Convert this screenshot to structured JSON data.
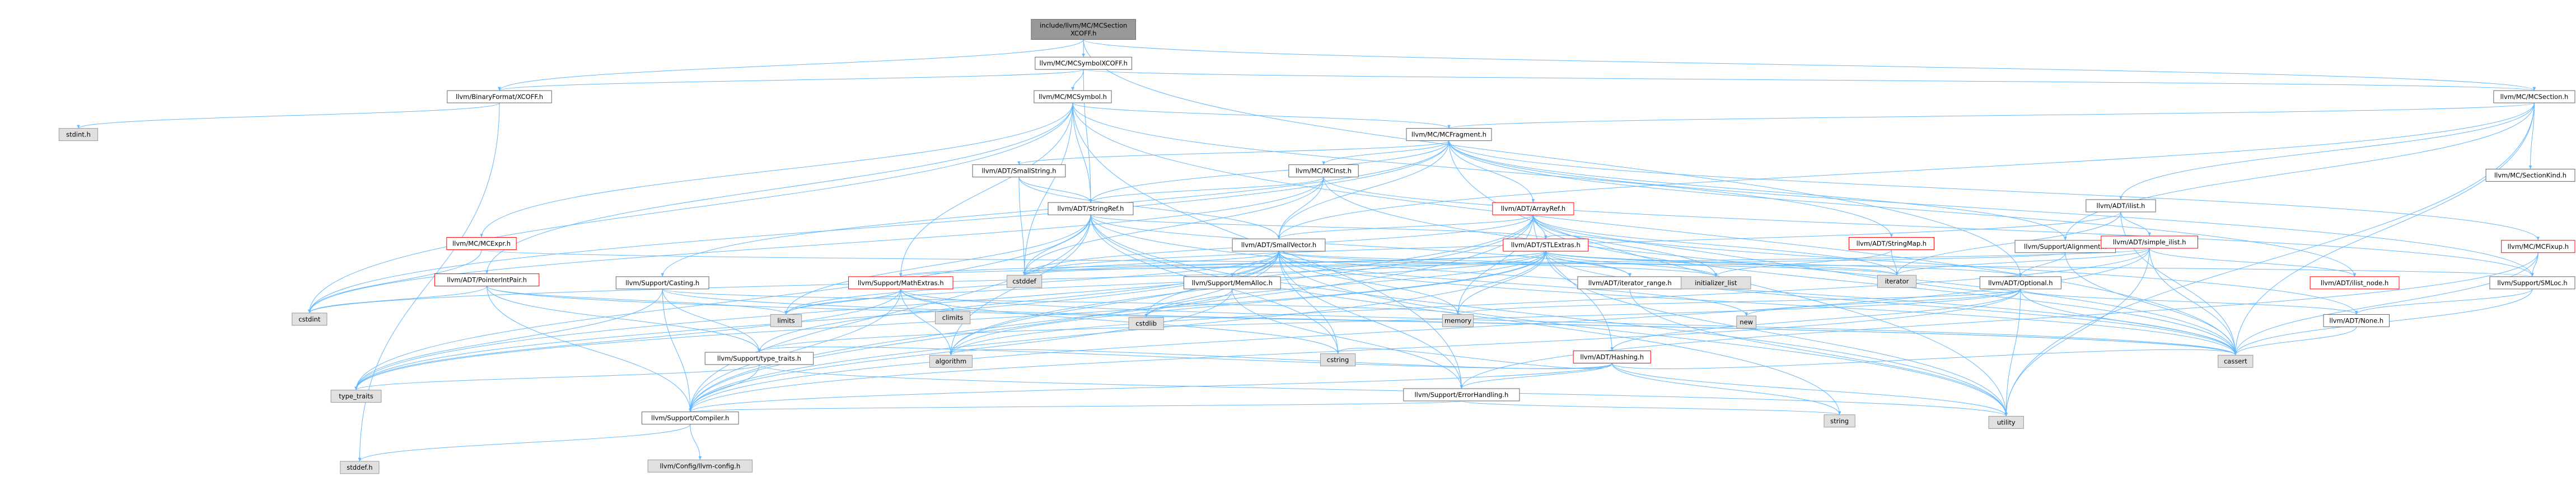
{
  "graph": {
    "nodes": [
      {
        "id": "root",
        "label": "include/llvm/MC/MCSection\nXCOFF.h",
        "style": "root"
      },
      {
        "id": "sym_xcoff",
        "label": "llvm/MC/MCSymbolXCOFF.h",
        "style": "normal"
      },
      {
        "id": "bf_xcoff",
        "label": "llvm/BinaryFormat/XCOFF.h",
        "style": "normal"
      },
      {
        "id": "mcsymbol",
        "label": "llvm/MC/MCSymbol.h",
        "style": "normal"
      },
      {
        "id": "mcsection",
        "label": "llvm/MC/MCSection.h",
        "style": "normal"
      },
      {
        "id": "stdint",
        "label": "stdint.h",
        "style": "gray"
      },
      {
        "id": "mcfragment",
        "label": "llvm/MC/MCFragment.h",
        "style": "normal"
      },
      {
        "id": "sectionkind",
        "label": "llvm/MC/SectionKind.h",
        "style": "normal"
      },
      {
        "id": "smallstring",
        "label": "llvm/ADT/SmallString.h",
        "style": "normal"
      },
      {
        "id": "mcinst",
        "label": "llvm/MC/MCInst.h",
        "style": "normal"
      },
      {
        "id": "arrayref",
        "label": "llvm/ADT/ArrayRef.h",
        "style": "red"
      },
      {
        "id": "ilist",
        "label": "llvm/ADT/ilist.h",
        "style": "normal"
      },
      {
        "id": "mcfixup",
        "label": "llvm/MC/MCFixup.h",
        "style": "red"
      },
      {
        "id": "stringref",
        "label": "llvm/ADT/StringRef.h",
        "style": "normal"
      },
      {
        "id": "mcexpr",
        "label": "llvm/MC/MCExpr.h",
        "style": "red"
      },
      {
        "id": "smallvector",
        "label": "llvm/ADT/SmallVector.h",
        "style": "normal"
      },
      {
        "id": "stlextras",
        "label": "llvm/ADT/STLExtras.h",
        "style": "red"
      },
      {
        "id": "stringmap",
        "label": "llvm/ADT/StringMap.h",
        "style": "red"
      },
      {
        "id": "alignment",
        "label": "llvm/Support/Alignment.h",
        "style": "normal"
      },
      {
        "id": "simple_ilist",
        "label": "llvm/ADT/simple_ilist.h",
        "style": "red"
      },
      {
        "id": "pointerintpair",
        "label": "llvm/ADT/PointerIntPair.h",
        "style": "red"
      },
      {
        "id": "casting",
        "label": "llvm/Support/Casting.h",
        "style": "normal"
      },
      {
        "id": "mathextras",
        "label": "llvm/Support/MathExtras.h",
        "style": "red"
      },
      {
        "id": "memalloc",
        "label": "llvm/Support/MemAlloc.h",
        "style": "normal"
      },
      {
        "id": "iterator_range",
        "label": "llvm/ADT/iterator_range.h",
        "style": "normal"
      },
      {
        "id": "optional",
        "label": "llvm/ADT/Optional.h",
        "style": "normal"
      },
      {
        "id": "ilist_node",
        "label": "llvm/ADT/ilist_node.h",
        "style": "red"
      },
      {
        "id": "smloc",
        "label": "llvm/Support/SMLoc.h",
        "style": "normal"
      },
      {
        "id": "cstddef",
        "label": "cstddef",
        "style": "gray"
      },
      {
        "id": "initializer_list",
        "label": "initializer_list",
        "style": "gray"
      },
      {
        "id": "iterator",
        "label": "iterator",
        "style": "gray"
      },
      {
        "id": "cstdint",
        "label": "cstdint",
        "style": "gray"
      },
      {
        "id": "climits",
        "label": "climits",
        "style": "gray"
      },
      {
        "id": "limits",
        "label": "limits",
        "style": "gray"
      },
      {
        "id": "cstdlib",
        "label": "cstdlib",
        "style": "gray"
      },
      {
        "id": "memory",
        "label": "memory",
        "style": "gray"
      },
      {
        "id": "new",
        "label": "new",
        "style": "gray"
      },
      {
        "id": "hashing",
        "label": "llvm/ADT/Hashing.h",
        "style": "red"
      },
      {
        "id": "none",
        "label": "llvm/ADT/None.h",
        "style": "normal"
      },
      {
        "id": "algorithm",
        "label": "algorithm",
        "style": "gray"
      },
      {
        "id": "cstring",
        "label": "cstring",
        "style": "gray"
      },
      {
        "id": "type_traits_h",
        "label": "llvm/Support/type_traits.h",
        "style": "normal"
      },
      {
        "id": "errorhandling",
        "label": "llvm/Support/ErrorHandling.h",
        "style": "normal"
      },
      {
        "id": "cassert",
        "label": "cassert",
        "style": "gray"
      },
      {
        "id": "type_traits",
        "label": "type_traits",
        "style": "gray"
      },
      {
        "id": "compiler",
        "label": "llvm/Support/Compiler.h",
        "style": "normal"
      },
      {
        "id": "string",
        "label": "string",
        "style": "gray"
      },
      {
        "id": "utility",
        "label": "utility",
        "style": "gray"
      },
      {
        "id": "stddef",
        "label": "stddef.h",
        "style": "gray"
      },
      {
        "id": "llvm_config",
        "label": "llvm/Config/llvm-config.h",
        "style": "gray"
      }
    ],
    "edges": [
      [
        "root",
        "sym_xcoff"
      ],
      [
        "root",
        "bf_xcoff"
      ],
      [
        "root",
        "mcsection"
      ],
      [
        "root",
        "optional"
      ],
      [
        "sym_xcoff",
        "bf_xcoff"
      ],
      [
        "sym_xcoff",
        "mcsymbol"
      ],
      [
        "sym_xcoff",
        "stringref"
      ],
      [
        "sym_xcoff",
        "mcsection"
      ],
      [
        "bf_xcoff",
        "stdint"
      ],
      [
        "bf_xcoff",
        "stddef"
      ],
      [
        "mcsymbol",
        "mcfragment"
      ],
      [
        "mcsymbol",
        "stringref"
      ],
      [
        "mcsymbol",
        "mcexpr"
      ],
      [
        "mcsymbol",
        "stringmap"
      ],
      [
        "mcsymbol",
        "pointerintpair"
      ],
      [
        "mcsymbol",
        "mathextras"
      ],
      [
        "mcsymbol",
        "errorhandling"
      ],
      [
        "mcsymbol",
        "cassert"
      ],
      [
        "mcsymbol",
        "cstddef"
      ],
      [
        "mcsymbol",
        "cstdint"
      ],
      [
        "mcsection",
        "mcfragment"
      ],
      [
        "mcsection",
        "sectionkind"
      ],
      [
        "mcsection",
        "ilist"
      ],
      [
        "mcsection",
        "smallvector"
      ],
      [
        "mcsection",
        "alignment"
      ],
      [
        "mcsection",
        "cassert"
      ],
      [
        "mcsection",
        "utility"
      ],
      [
        "mcfragment",
        "smallstring"
      ],
      [
        "mcfragment",
        "mcinst"
      ],
      [
        "mcfragment",
        "arrayref"
      ],
      [
        "mcfragment",
        "stringref"
      ],
      [
        "mcfragment",
        "smallvector"
      ],
      [
        "mcfragment",
        "ilist_node"
      ],
      [
        "mcfragment",
        "mcfixup"
      ],
      [
        "mcfragment",
        "alignment"
      ],
      [
        "mcfragment",
        "casting"
      ],
      [
        "mcfragment",
        "smloc"
      ],
      [
        "mcfragment",
        "cstdint"
      ],
      [
        "mcfragment",
        "utility"
      ],
      [
        "smallstring",
        "stringref"
      ],
      [
        "smallstring",
        "smallvector"
      ],
      [
        "smallstring",
        "cstddef"
      ],
      [
        "mcinst",
        "stringref"
      ],
      [
        "mcinst",
        "smallvector"
      ],
      [
        "mcinst",
        "smloc"
      ],
      [
        "mcinst",
        "cassert"
      ],
      [
        "mcinst",
        "cstddef"
      ],
      [
        "mcinst",
        "cstdint"
      ],
      [
        "arrayref",
        "hashing"
      ],
      [
        "arrayref",
        "none"
      ],
      [
        "arrayref",
        "smallvector"
      ],
      [
        "arrayref",
        "stlextras"
      ],
      [
        "arrayref",
        "compiler"
      ],
      [
        "arrayref",
        "algorithm"
      ],
      [
        "arrayref",
        "cassert"
      ],
      [
        "arrayref",
        "cstddef"
      ],
      [
        "arrayref",
        "initializer_list"
      ],
      [
        "arrayref",
        "iterator"
      ],
      [
        "arrayref",
        "memory"
      ],
      [
        "arrayref",
        "type_traits"
      ],
      [
        "arrayref",
        "vector"
      ],
      [
        "ilist",
        "simple_ilist"
      ],
      [
        "ilist",
        "cassert"
      ],
      [
        "ilist",
        "cstddef"
      ],
      [
        "ilist",
        "iterator"
      ],
      [
        "mcfixup",
        "errorhandling"
      ],
      [
        "mcfixup",
        "smloc"
      ],
      [
        "mcfixup",
        "cassert"
      ],
      [
        "stringref",
        "stlextras"
      ],
      [
        "stringref",
        "iterator_range"
      ],
      [
        "stringref",
        "compiler"
      ],
      [
        "stringref",
        "algorithm"
      ],
      [
        "stringref",
        "cassert"
      ],
      [
        "stringref",
        "cstddef"
      ],
      [
        "stringref",
        "cstring"
      ],
      [
        "stringref",
        "limits"
      ],
      [
        "stringref",
        "string"
      ],
      [
        "stringref",
        "type_traits"
      ],
      [
        "stringref",
        "utility"
      ],
      [
        "mcexpr",
        "smloc"
      ],
      [
        "mcexpr",
        "cstdint"
      ],
      [
        "smallvector",
        "compiler"
      ],
      [
        "smallvector",
        "errorhandling"
      ],
      [
        "smallvector",
        "memalloc"
      ],
      [
        "smallvector",
        "type_traits_h"
      ],
      [
        "smallvector",
        "algorithm"
      ],
      [
        "smallvector",
        "cassert"
      ],
      [
        "smallvector",
        "cstddef"
      ],
      [
        "smallvector",
        "cstdlib"
      ],
      [
        "smallvector",
        "cstring"
      ],
      [
        "smallvector",
        "functional"
      ],
      [
        "smallvector",
        "initializer_list"
      ],
      [
        "smallvector",
        "iterator"
      ],
      [
        "smallvector",
        "limits"
      ],
      [
        "smallvector",
        "memory"
      ],
      [
        "smallvector",
        "new"
      ],
      [
        "smallvector",
        "type_traits"
      ],
      [
        "smallvector",
        "utility"
      ],
      [
        "stlextras",
        "optional"
      ],
      [
        "stlextras",
        "iterator_range"
      ],
      [
        "stlextras",
        "compiler"
      ],
      [
        "stlextras",
        "algorithm"
      ],
      [
        "stlextras",
        "cassert"
      ],
      [
        "stlextras",
        "cstddef"
      ],
      [
        "stlextras",
        "cstdint"
      ],
      [
        "stlextras",
        "cstdlib"
      ],
      [
        "stlextras",
        "initializer_list"
      ],
      [
        "stlextras",
        "iterator"
      ],
      [
        "stlextras",
        "limits"
      ],
      [
        "stlextras",
        "memory"
      ],
      [
        "stlextras",
        "type_traits"
      ],
      [
        "stlextras",
        "utility"
      ],
      [
        "stlextras",
        "mathextras"
      ],
      [
        "stringmap",
        "iterator"
      ],
      [
        "stringmap",
        "initializer_list"
      ],
      [
        "alignment",
        "mathextras"
      ],
      [
        "alignment",
        "cassert"
      ],
      [
        "alignment",
        "optional"
      ],
      [
        "simple_ilist",
        "ilist_node"
      ],
      [
        "simple_ilist",
        "compiler"
      ],
      [
        "simple_ilist",
        "algorithm"
      ],
      [
        "simple_ilist",
        "cassert"
      ],
      [
        "simple_ilist",
        "cstddef"
      ],
      [
        "simple_ilist",
        "functional"
      ],
      [
        "simple_ilist",
        "iterator"
      ],
      [
        "simple_ilist",
        "utility"
      ],
      [
        "pointerintpair",
        "compiler"
      ],
      [
        "pointerintpair",
        "type_traits_h"
      ],
      [
        "pointerintpair",
        "cassert"
      ],
      [
        "pointerintpair",
        "cstdint"
      ],
      [
        "pointerintpair",
        "limits"
      ],
      [
        "casting",
        "compiler"
      ],
      [
        "casting",
        "type_traits_h"
      ],
      [
        "casting",
        "cassert"
      ],
      [
        "casting",
        "memory"
      ],
      [
        "casting",
        "type_traits"
      ],
      [
        "mathextras",
        "compiler"
      ],
      [
        "mathextras",
        "algorithm"
      ],
      [
        "mathextras",
        "cassert"
      ],
      [
        "mathextras",
        "climits"
      ],
      [
        "mathextras",
        "cstring"
      ],
      [
        "mathextras",
        "limits"
      ],
      [
        "mathextras",
        "type_traits"
      ],
      [
        "memalloc",
        "compiler"
      ],
      [
        "memalloc",
        "errorhandling"
      ],
      [
        "memalloc",
        "cstdlib"
      ],
      [
        "iterator_range",
        "utility"
      ],
      [
        "optional",
        "hashing"
      ],
      [
        "optional",
        "none"
      ],
      [
        "optional",
        "stlextras"
      ],
      [
        "optional",
        "compiler"
      ],
      [
        "optional",
        "type_traits_h"
      ],
      [
        "optional",
        "cassert"
      ],
      [
        "optional",
        "new"
      ],
      [
        "optional",
        "utility"
      ],
      [
        "optional",
        "memory"
      ],
      [
        "smloc",
        "none"
      ],
      [
        "smloc",
        "cassert"
      ],
      [
        "hashing",
        "errorhandling"
      ],
      [
        "hashing",
        "compiler"
      ],
      [
        "hashing",
        "type_traits_h"
      ],
      [
        "hashing",
        "algorithm"
      ],
      [
        "hashing",
        "cassert"
      ],
      [
        "hashing",
        "cstring"
      ],
      [
        "hashing",
        "string"
      ],
      [
        "hashing",
        "tuple"
      ],
      [
        "hashing",
        "utility"
      ],
      [
        "none",
        "cassert"
      ],
      [
        "type_traits_h",
        "compiler"
      ],
      [
        "type_traits_h",
        "type_traits"
      ],
      [
        "type_traits_h",
        "utility"
      ],
      [
        "errorhandling",
        "compiler"
      ],
      [
        "errorhandling",
        "string"
      ],
      [
        "compiler",
        "llvm_config"
      ],
      [
        "compiler",
        "stddef"
      ]
    ]
  }
}
